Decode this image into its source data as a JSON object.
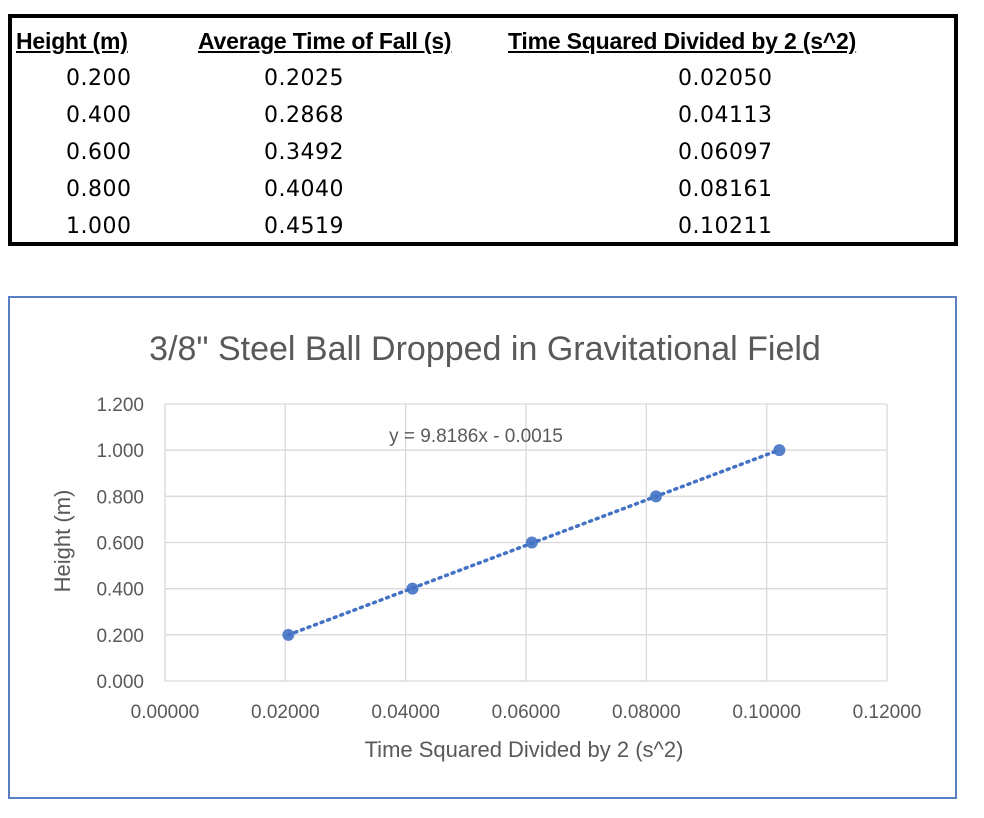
{
  "table": {
    "headers": [
      "Height (m)",
      "Average Time of Fall (s)",
      "Time Squared Divided by 2 (s^2)"
    ],
    "rows": [
      [
        "0.200",
        "0.2025",
        "0.02050"
      ],
      [
        "0.400",
        "0.2868",
        "0.04113"
      ],
      [
        "0.600",
        "0.3492",
        "0.06097"
      ],
      [
        "0.800",
        "0.4040",
        "0.08161"
      ],
      [
        "1.000",
        "0.4519",
        "0.10211"
      ]
    ]
  },
  "chart_data": {
    "type": "scatter",
    "title": "3/8\" Steel Ball Dropped in Gravitational Field",
    "xlabel": "Time Squared Divided by 2 (s^2)",
    "ylabel": "Height (m)",
    "xlim": [
      0,
      0.12
    ],
    "ylim": [
      0,
      1.2
    ],
    "x_ticks": [
      "0.00000",
      "0.02000",
      "0.04000",
      "0.06000",
      "0.08000",
      "0.10000",
      "0.12000"
    ],
    "y_ticks": [
      "0.000",
      "0.200",
      "0.400",
      "0.600",
      "0.800",
      "1.000",
      "1.200"
    ],
    "grid": true,
    "series": [
      {
        "x": [
          0.0205,
          0.04113,
          0.06097,
          0.08161,
          0.10211
        ],
        "y": [
          0.2,
          0.4,
          0.6,
          0.8,
          1.0
        ]
      }
    ],
    "trendline": {
      "type": "linear",
      "slope": 9.8186,
      "intercept": -0.0015,
      "equation": "y = 9.8186x - 0.0015",
      "style": "dotted"
    },
    "marker_color": "#4472c4",
    "axis_text_color": "#595959",
    "gridline_color": "#d9d9d9"
  }
}
